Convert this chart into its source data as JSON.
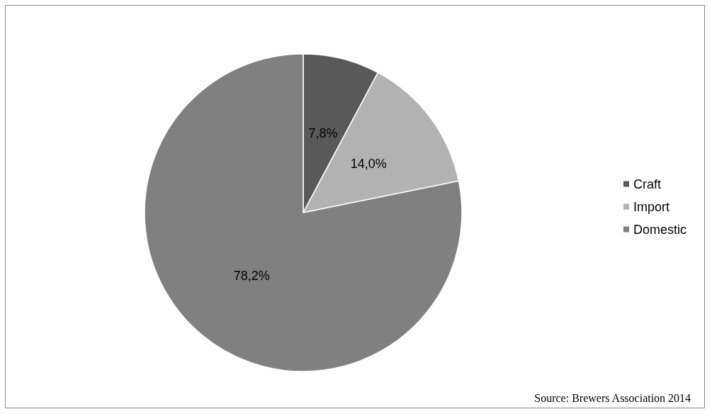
{
  "chart_data": {
    "type": "pie",
    "categories": [
      "Craft",
      "Import",
      "Domestic"
    ],
    "values": [
      7.8,
      14.0,
      78.2
    ],
    "colors": [
      "#595959",
      "#b2b2b2",
      "#808080"
    ],
    "value_labels": [
      "7,8%",
      "14,0%",
      "78,2%"
    ],
    "legend": "right",
    "annotations": [
      "Source: Brewers Association 2014"
    ]
  }
}
